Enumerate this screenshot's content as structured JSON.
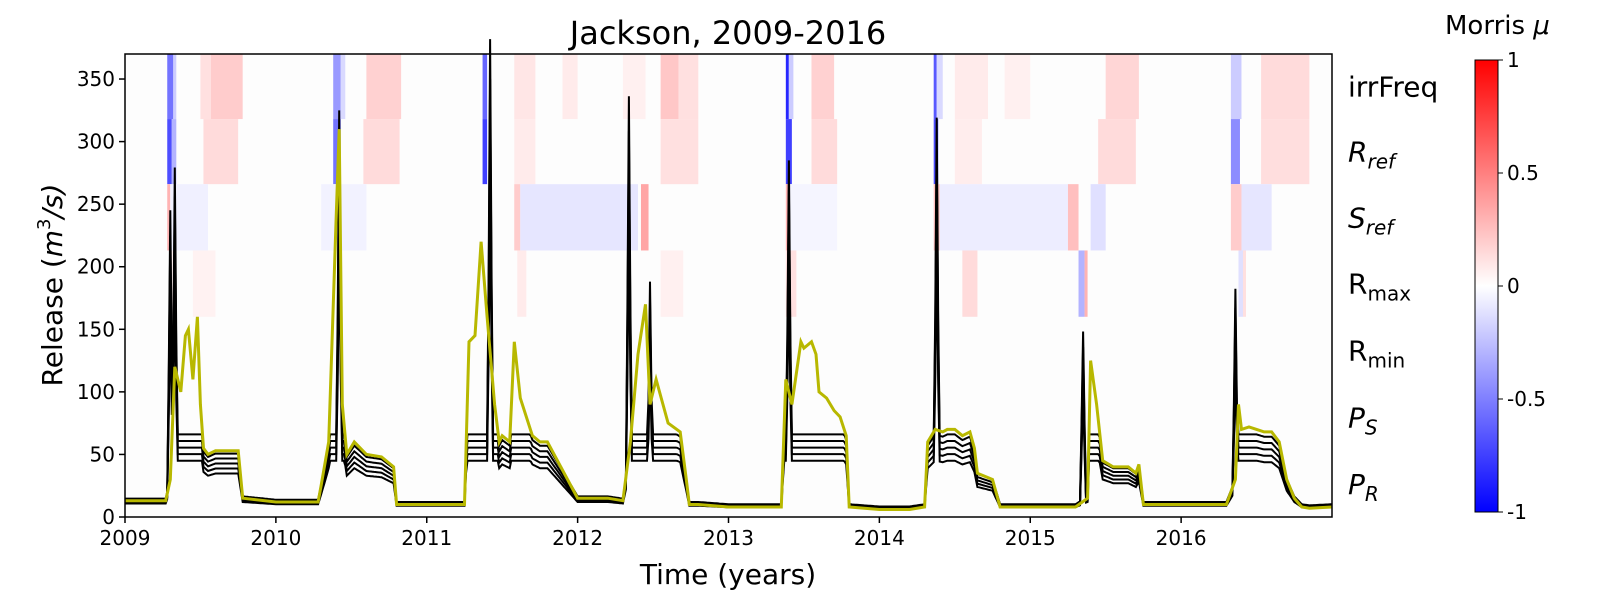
{
  "chart_data": {
    "type": "line",
    "title": "Jackson, 2009-2016",
    "xlabel": "Time (years)",
    "ylabel": {
      "prefix": "Release (",
      "base": "m",
      "sup": "3",
      "suffix": "/s)"
    },
    "xlim": [
      2009,
      2017
    ],
    "ylim": [
      0,
      370
    ],
    "x_ticks": [
      2009,
      2010,
      2011,
      2012,
      2013,
      2014,
      2015,
      2016
    ],
    "x_tick_labels": [
      "2009",
      "2010",
      "2011",
      "2012",
      "2013",
      "2014",
      "2015",
      "2016"
    ],
    "y_ticks": [
      0,
      50,
      100,
      150,
      200,
      250,
      300,
      350
    ],
    "y_tick_labels": [
      "0",
      "50",
      "100",
      "150",
      "200",
      "250",
      "300",
      "350"
    ],
    "legend": "none",
    "colors": {
      "simulated": "#000000",
      "observed": "#b8b800"
    },
    "heatmap_rows": [
      {
        "label": "irrFreq",
        "sub": "",
        "italic": false,
        "y_range": [
          318,
          370
        ]
      },
      {
        "label": "R",
        "sub": "ref",
        "italic": true,
        "y_range": [
          266,
          318
        ]
      },
      {
        "label": "S",
        "sub": "ref",
        "italic": true,
        "y_range": [
          213,
          266
        ]
      },
      {
        "label": "R",
        "sub": "max",
        "italic": false,
        "y_range": [
          160,
          213
        ]
      },
      {
        "label": "R",
        "sub": "min",
        "italic": false,
        "y_range": [
          106,
          160
        ]
      },
      {
        "label": "P",
        "sub": "S",
        "italic": true,
        "y_range": [
          53,
          106
        ]
      },
      {
        "label": "P",
        "sub": "R",
        "italic": true,
        "y_range": [
          0,
          53
        ]
      }
    ],
    "heatmap_cells": [
      {
        "row": 0,
        "x0": 2009.28,
        "x1": 2009.32,
        "v": -0.55
      },
      {
        "row": 0,
        "x0": 2009.32,
        "x1": 2009.34,
        "v": -0.2
      },
      {
        "row": 0,
        "x0": 2009.5,
        "x1": 2009.57,
        "v": 0.12
      },
      {
        "row": 0,
        "x0": 2009.57,
        "x1": 2009.78,
        "v": 0.2
      },
      {
        "row": 0,
        "x0": 2010.38,
        "x1": 2010.43,
        "v": -0.4
      },
      {
        "row": 0,
        "x0": 2010.43,
        "x1": 2010.46,
        "v": -0.15
      },
      {
        "row": 0,
        "x0": 2010.6,
        "x1": 2010.83,
        "v": 0.18
      },
      {
        "row": 0,
        "x0": 2011.37,
        "x1": 2011.4,
        "v": -0.6
      },
      {
        "row": 0,
        "x0": 2011.58,
        "x1": 2011.72,
        "v": 0.1
      },
      {
        "row": 0,
        "x0": 2011.9,
        "x1": 2012.0,
        "v": 0.08
      },
      {
        "row": 0,
        "x0": 2012.3,
        "x1": 2012.45,
        "v": 0.06
      },
      {
        "row": 0,
        "x0": 2012.55,
        "x1": 2012.67,
        "v": 0.22
      },
      {
        "row": 0,
        "x0": 2012.67,
        "x1": 2012.8,
        "v": 0.12
      },
      {
        "row": 0,
        "x0": 2013.38,
        "x1": 2013.4,
        "v": -0.85
      },
      {
        "row": 0,
        "x0": 2013.4,
        "x1": 2013.43,
        "v": -0.2
      },
      {
        "row": 0,
        "x0": 2013.55,
        "x1": 2013.7,
        "v": 0.18
      },
      {
        "row": 0,
        "x0": 2014.36,
        "x1": 2014.38,
        "v": -0.65
      },
      {
        "row": 0,
        "x0": 2014.38,
        "x1": 2014.42,
        "v": -0.15
      },
      {
        "row": 0,
        "x0": 2014.5,
        "x1": 2014.72,
        "v": 0.08
      },
      {
        "row": 0,
        "x0": 2014.83,
        "x1": 2015.0,
        "v": 0.06
      },
      {
        "row": 0,
        "x0": 2015.5,
        "x1": 2015.72,
        "v": 0.16
      },
      {
        "row": 0,
        "x0": 2016.33,
        "x1": 2016.4,
        "v": -0.2
      },
      {
        "row": 0,
        "x0": 2016.53,
        "x1": 2016.85,
        "v": 0.14
      },
      {
        "row": 1,
        "x0": 2009.28,
        "x1": 2009.31,
        "v": -0.7
      },
      {
        "row": 1,
        "x0": 2009.31,
        "x1": 2009.34,
        "v": -0.3
      },
      {
        "row": 1,
        "x0": 2009.52,
        "x1": 2009.75,
        "v": 0.14
      },
      {
        "row": 1,
        "x0": 2010.38,
        "x1": 2010.43,
        "v": -0.55
      },
      {
        "row": 1,
        "x0": 2010.58,
        "x1": 2010.82,
        "v": 0.14
      },
      {
        "row": 1,
        "x0": 2011.37,
        "x1": 2011.4,
        "v": -0.75
      },
      {
        "row": 1,
        "x0": 2011.58,
        "x1": 2011.72,
        "v": 0.08
      },
      {
        "row": 1,
        "x0": 2012.55,
        "x1": 2012.8,
        "v": 0.12
      },
      {
        "row": 1,
        "x0": 2013.38,
        "x1": 2013.42,
        "v": -0.75
      },
      {
        "row": 1,
        "x0": 2013.55,
        "x1": 2013.72,
        "v": 0.14
      },
      {
        "row": 1,
        "x0": 2014.36,
        "x1": 2014.39,
        "v": -0.7
      },
      {
        "row": 1,
        "x0": 2014.5,
        "x1": 2014.68,
        "v": 0.07
      },
      {
        "row": 1,
        "x0": 2015.45,
        "x1": 2015.7,
        "v": 0.14
      },
      {
        "row": 1,
        "x0": 2016.33,
        "x1": 2016.39,
        "v": -0.45
      },
      {
        "row": 1,
        "x0": 2016.53,
        "x1": 2016.85,
        "v": 0.13
      },
      {
        "row": 2,
        "x0": 2009.28,
        "x1": 2009.3,
        "v": 0.3
      },
      {
        "row": 2,
        "x0": 2009.3,
        "x1": 2009.55,
        "v": -0.06
      },
      {
        "row": 2,
        "x0": 2010.3,
        "x1": 2010.6,
        "v": -0.05
      },
      {
        "row": 2,
        "x0": 2011.58,
        "x1": 2011.62,
        "v": 0.2
      },
      {
        "row": 2,
        "x0": 2011.62,
        "x1": 2012.4,
        "v": -0.1
      },
      {
        "row": 2,
        "x0": 2012.42,
        "x1": 2012.47,
        "v": 0.35
      },
      {
        "row": 2,
        "x0": 2013.38,
        "x1": 2013.4,
        "v": 0.3
      },
      {
        "row": 2,
        "x0": 2013.4,
        "x1": 2013.72,
        "v": -0.04
      },
      {
        "row": 2,
        "x0": 2014.36,
        "x1": 2014.4,
        "v": 0.25
      },
      {
        "row": 2,
        "x0": 2014.4,
        "x1": 2015.25,
        "v": -0.07
      },
      {
        "row": 2,
        "x0": 2015.25,
        "x1": 2015.32,
        "v": 0.25
      },
      {
        "row": 2,
        "x0": 2015.4,
        "x1": 2015.5,
        "v": -0.12
      },
      {
        "row": 2,
        "x0": 2016.33,
        "x1": 2016.4,
        "v": 0.2
      },
      {
        "row": 2,
        "x0": 2016.4,
        "x1": 2016.6,
        "v": -0.1
      },
      {
        "row": 3,
        "x0": 2009.3,
        "x1": 2009.34,
        "v": 0.06
      },
      {
        "row": 3,
        "x0": 2009.45,
        "x1": 2009.6,
        "v": 0.05
      },
      {
        "row": 3,
        "x0": 2011.6,
        "x1": 2011.66,
        "v": 0.08
      },
      {
        "row": 3,
        "x0": 2012.55,
        "x1": 2012.7,
        "v": 0.06
      },
      {
        "row": 3,
        "x0": 2013.38,
        "x1": 2013.45,
        "v": 0.12
      },
      {
        "row": 3,
        "x0": 2014.55,
        "x1": 2014.65,
        "v": 0.14
      },
      {
        "row": 3,
        "x0": 2015.32,
        "x1": 2015.36,
        "v": -0.3
      },
      {
        "row": 3,
        "x0": 2015.36,
        "x1": 2015.38,
        "v": 0.3
      },
      {
        "row": 3,
        "x0": 2016.38,
        "x1": 2016.41,
        "v": -0.12
      },
      {
        "row": 3,
        "x0": 2016.41,
        "x1": 2016.43,
        "v": 0.12
      }
    ],
    "colorbar": {
      "title": "Morris",
      "title_symbol": "μ",
      "ticks": [
        1,
        0.5,
        0,
        -0.5,
        -1
      ],
      "tick_labels": [
        "1",
        "0.5",
        "0",
        "-0.5",
        "-1"
      ],
      "colormap": "bwr",
      "range": [
        -1,
        1
      ]
    },
    "series": [
      {
        "role": "observed",
        "x": [
          2009.0,
          2009.27,
          2009.3,
          2009.33,
          2009.37,
          2009.4,
          2009.42,
          2009.45,
          2009.48,
          2009.5,
          2009.52,
          2009.55,
          2009.6,
          2009.75,
          2009.78,
          2010.0,
          2010.2,
          2010.28,
          2010.3,
          2010.35,
          2010.4,
          2010.42,
          2010.44,
          2010.47,
          2010.52,
          2010.6,
          2010.7,
          2010.78,
          2010.8,
          2011.0,
          2011.2,
          2011.25,
          2011.28,
          2011.32,
          2011.36,
          2011.4,
          2011.45,
          2011.48,
          2011.5,
          2011.55,
          2011.58,
          2011.62,
          2011.7,
          2011.75,
          2011.8,
          2012.0,
          2012.2,
          2012.3,
          2012.35,
          2012.4,
          2012.45,
          2012.48,
          2012.52,
          2012.6,
          2012.68,
          2012.72,
          2012.74,
          2012.8,
          2013.0,
          2013.35,
          2013.38,
          2013.42,
          2013.48,
          2013.5,
          2013.55,
          2013.58,
          2013.6,
          2013.65,
          2013.7,
          2013.74,
          2013.78,
          2013.8,
          2014.0,
          2014.2,
          2014.3,
          2014.32,
          2014.37,
          2014.42,
          2014.45,
          2014.5,
          2014.55,
          2014.6,
          2014.63,
          2014.65,
          2014.75,
          2014.8,
          2014.85,
          2015.0,
          2015.3,
          2015.38,
          2015.4,
          2015.44,
          2015.48,
          2015.55,
          2015.65,
          2015.7,
          2015.72,
          2015.75,
          2015.8,
          2016.0,
          2016.3,
          2016.36,
          2016.38,
          2016.4,
          2016.45,
          2016.5,
          2016.55,
          2016.6,
          2016.65,
          2016.7,
          2016.75,
          2016.8,
          2016.85,
          2017.0
        ],
        "y": [
          13,
          13,
          30,
          120,
          100,
          145,
          150,
          110,
          160,
          90,
          55,
          50,
          53,
          53,
          15,
          12,
          12,
          12,
          25,
          60,
          240,
          310,
          90,
          50,
          60,
          50,
          48,
          40,
          10,
          10,
          10,
          10,
          140,
          145,
          220,
          160,
          90,
          60,
          65,
          60,
          140,
          95,
          65,
          60,
          60,
          15,
          15,
          13,
          60,
          130,
          170,
          90,
          110,
          75,
          68,
          30,
          10,
          10,
          8,
          8,
          110,
          90,
          140,
          135,
          140,
          130,
          100,
          95,
          85,
          80,
          65,
          8,
          6,
          6,
          8,
          60,
          70,
          68,
          70,
          70,
          65,
          68,
          55,
          35,
          30,
          8,
          8,
          8,
          8,
          15,
          125,
          90,
          45,
          40,
          40,
          35,
          42,
          10,
          10,
          10,
          10,
          30,
          90,
          70,
          72,
          70,
          68,
          68,
          60,
          30,
          15,
          8,
          7,
          8
        ]
      }
    ],
    "sim_envelope_note": ""
  }
}
